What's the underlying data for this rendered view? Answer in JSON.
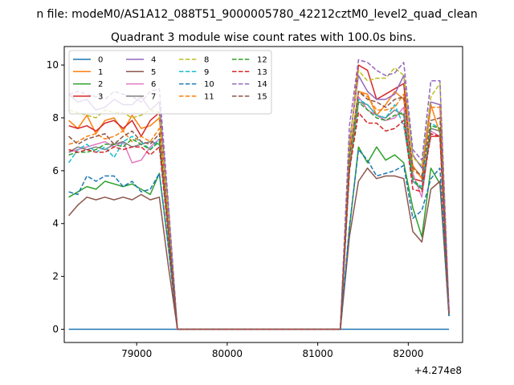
{
  "suptitle": "n file: modeM0/AS1A12_088T51_9000005780_42212cztM0_level2_quad_clean",
  "chart_data": {
    "type": "line",
    "title": "Quadrant 3 module wise count rates with 100.0s bins.",
    "xlabel": "",
    "ylabel": "",
    "x_offset_label": "+4.274e8",
    "xlim": [
      78200,
      82600
    ],
    "ylim": [
      -0.5,
      10.7
    ],
    "x_ticks": [
      79000,
      80000,
      81000,
      82000
    ],
    "x_tick_labels": [
      "79000",
      "80000",
      "81000",
      "82000"
    ],
    "y_ticks": [
      0,
      2,
      4,
      6,
      8,
      10
    ],
    "y_tick_labels": [
      "0",
      "2",
      "4",
      "6",
      "8",
      "10"
    ],
    "legend_location": "upper-left",
    "legend_columns": 4,
    "grid": false,
    "x": [
      78250,
      78350,
      78450,
      78550,
      78650,
      78750,
      78850,
      78950,
      79050,
      79150,
      79250,
      79350,
      79450,
      81250,
      81350,
      81450,
      81550,
      81650,
      81750,
      81850,
      81950,
      82050,
      82150,
      82250,
      82350,
      82450
    ],
    "series": [
      {
        "name": "0",
        "color": "#1f77b4",
        "style": "solid",
        "values": [
          0,
          0,
          0,
          0,
          0,
          0,
          0,
          0,
          0,
          0,
          0,
          0,
          0,
          0,
          0,
          0,
          0,
          0,
          0,
          0,
          0,
          0,
          0,
          0,
          0,
          0
        ]
      },
      {
        "name": "1",
        "color": "#ff7f0e",
        "style": "solid",
        "values": [
          7.9,
          7.6,
          8.1,
          7.4,
          7.9,
          8.0,
          7.5,
          8.1,
          7.6,
          7.7,
          8.0,
          4.3,
          0,
          0,
          6.6,
          9.0,
          8.9,
          8.1,
          8.5,
          9.0,
          8.7,
          6.2,
          5.7,
          8.5,
          7.4,
          0.6
        ]
      },
      {
        "name": "2",
        "color": "#2ca02c",
        "style": "solid",
        "values": [
          5.0,
          5.2,
          5.4,
          5.3,
          5.6,
          5.5,
          5.4,
          5.5,
          5.3,
          5.1,
          5.9,
          3.2,
          0,
          0,
          3.8,
          6.9,
          6.3,
          6.9,
          6.4,
          6.6,
          6.3,
          4.6,
          3.5,
          6.1,
          5.5,
          0.5
        ]
      },
      {
        "name": "3",
        "color": "#d62728",
        "style": "solid",
        "values": [
          7.7,
          7.6,
          7.7,
          7.5,
          7.8,
          7.9,
          7.6,
          7.9,
          7.3,
          7.9,
          8.2,
          4.3,
          0,
          0,
          6.9,
          10.0,
          9.8,
          8.7,
          8.9,
          9.1,
          9.3,
          5.7,
          5.6,
          7.3,
          7.3,
          0.6
        ]
      },
      {
        "name": "4",
        "color": "#9467bd",
        "style": "solid",
        "values": [
          8.9,
          8.6,
          8.7,
          8.3,
          8.4,
          8.7,
          8.5,
          8.5,
          8.8,
          8.3,
          8.6,
          4.6,
          0,
          0,
          7.1,
          9.6,
          9.0,
          8.7,
          8.7,
          8.9,
          9.6,
          6.6,
          6.1,
          8.6,
          8.5,
          0.7
        ]
      },
      {
        "name": "5",
        "color": "#8c564b",
        "style": "solid",
        "values": [
          4.3,
          4.7,
          5.0,
          4.9,
          5.0,
          4.9,
          5.0,
          4.9,
          5.1,
          4.9,
          5.0,
          2.4,
          0,
          0,
          3.5,
          5.6,
          6.1,
          5.7,
          5.8,
          5.8,
          5.7,
          3.7,
          3.3,
          5.3,
          5.6,
          0.5
        ]
      },
      {
        "name": "6",
        "color": "#e377c2",
        "style": "solid",
        "values": [
          6.7,
          6.8,
          6.9,
          7.0,
          7.1,
          6.9,
          7.1,
          6.3,
          6.4,
          6.9,
          7.2,
          3.8,
          0,
          0,
          6.0,
          8.8,
          8.3,
          8.1,
          7.9,
          8.0,
          8.4,
          5.9,
          5.0,
          7.5,
          7.3,
          0.6
        ]
      },
      {
        "name": "7",
        "color": "#7f7f7f",
        "style": "solid",
        "values": [
          6.7,
          6.9,
          6.8,
          6.9,
          6.8,
          7.0,
          7.1,
          6.9,
          7.0,
          7.1,
          7.0,
          3.7,
          0,
          0,
          6.1,
          8.6,
          8.5,
          8.1,
          8.0,
          8.3,
          8.1,
          5.6,
          5.3,
          7.6,
          7.5,
          0.6
        ]
      },
      {
        "name": "8",
        "color": "#bcbd22",
        "style": "dashed",
        "values": [
          8.3,
          8.2,
          8.1,
          8.0,
          8.3,
          8.2,
          8.2,
          8.0,
          8.1,
          8.3,
          8.2,
          4.4,
          0,
          0,
          7.0,
          9.8,
          9.4,
          9.5,
          9.5,
          9.9,
          9.6,
          6.5,
          6.2,
          8.8,
          9.3,
          0.6
        ]
      },
      {
        "name": "9",
        "color": "#17becf",
        "style": "dashed",
        "values": [
          6.3,
          6.8,
          7.0,
          6.7,
          6.9,
          6.5,
          7.1,
          7.3,
          7.1,
          6.8,
          7.2,
          3.8,
          0,
          0,
          6.3,
          8.7,
          8.5,
          8.1,
          8.0,
          8.5,
          7.7,
          5.6,
          5.4,
          7.8,
          7.6,
          0.6
        ]
      },
      {
        "name": "10",
        "color": "#1f77b4",
        "style": "dashed",
        "values": [
          5.2,
          5.1,
          5.8,
          5.6,
          5.8,
          5.8,
          5.4,
          5.6,
          5.2,
          5.3,
          5.9,
          3.1,
          0,
          0,
          3.9,
          6.8,
          6.4,
          5.8,
          5.9,
          6.0,
          6.2,
          4.2,
          4.5,
          5.7,
          6.1,
          0.5
        ]
      },
      {
        "name": "11",
        "color": "#ff7f0e",
        "style": "dashed",
        "values": [
          7.0,
          7.1,
          7.3,
          7.4,
          7.2,
          7.3,
          7.5,
          7.1,
          7.3,
          7.1,
          7.6,
          4.0,
          0,
          0,
          6.4,
          9.0,
          8.8,
          8.3,
          8.3,
          8.4,
          8.9,
          6.0,
          5.8,
          8.4,
          8.4,
          0.6
        ]
      },
      {
        "name": "12",
        "color": "#2ca02c",
        "style": "dashed",
        "values": [
          6.6,
          6.7,
          6.7,
          6.8,
          7.0,
          7.0,
          6.9,
          7.2,
          7.0,
          6.8,
          7.1,
          3.7,
          0,
          0,
          6.0,
          8.6,
          8.3,
          8.0,
          7.9,
          8.1,
          8.2,
          5.7,
          5.3,
          7.7,
          7.6,
          0.6
        ]
      },
      {
        "name": "13",
        "color": "#d62728",
        "style": "dashed",
        "values": [
          6.8,
          6.7,
          6.8,
          6.7,
          6.7,
          6.9,
          6.8,
          6.9,
          6.9,
          6.6,
          6.9,
          3.6,
          0,
          0,
          6.0,
          8.2,
          7.8,
          7.8,
          7.5,
          7.6,
          7.9,
          5.3,
          5.2,
          7.4,
          7.3,
          0.6
        ]
      },
      {
        "name": "14",
        "color": "#9467bd",
        "style": "dashed",
        "values": [
          8.9,
          9.0,
          8.9,
          8.8,
          8.7,
          9.0,
          8.9,
          8.8,
          8.6,
          9.0,
          9.1,
          4.8,
          0,
          0,
          7.7,
          10.2,
          10.1,
          9.8,
          9.6,
          9.7,
          10.1,
          6.8,
          6.4,
          9.4,
          9.4,
          0.7
        ]
      },
      {
        "name": "15",
        "color": "#8c564b",
        "style": "dashed",
        "values": [
          7.3,
          7.0,
          7.2,
          7.3,
          7.4,
          7.0,
          7.3,
          7.5,
          7.1,
          7.0,
          7.4,
          3.9,
          0,
          0,
          6.5,
          9.0,
          8.7,
          8.6,
          8.4,
          8.7,
          8.8,
          6.1,
          5.8,
          7.9,
          8.0,
          0.6
        ]
      }
    ]
  }
}
